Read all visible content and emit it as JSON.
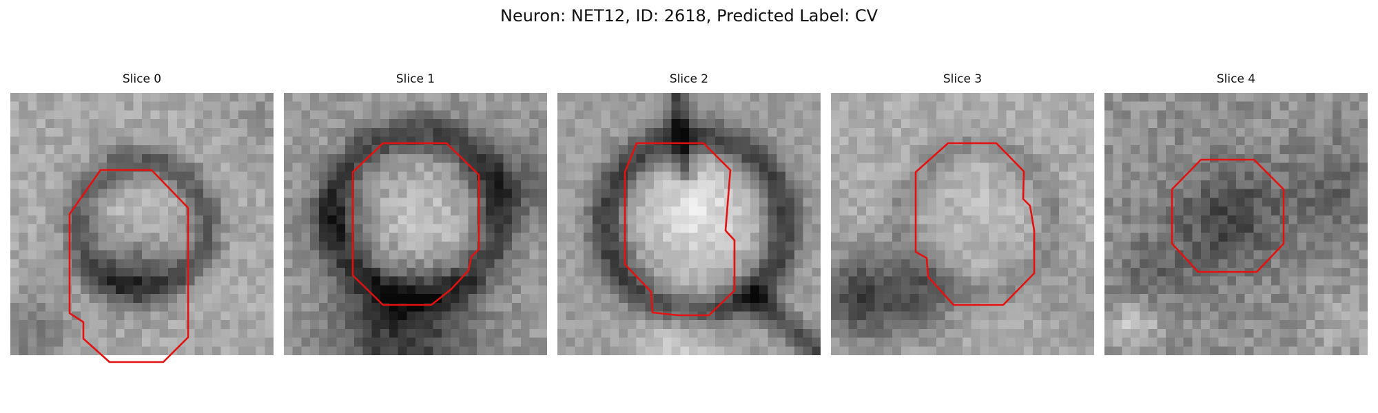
{
  "title": "Neuron: NET12, ID: 2618, Predicted Label: CV",
  "slices": [
    {
      "label": "Slice 0"
    },
    {
      "label": "Slice 1"
    },
    {
      "label": "Slice 2"
    },
    {
      "label": "Slice 3"
    },
    {
      "label": "Slice 4"
    }
  ],
  "colors": {
    "contour": "#e41111",
    "background": "#ffffff"
  }
}
